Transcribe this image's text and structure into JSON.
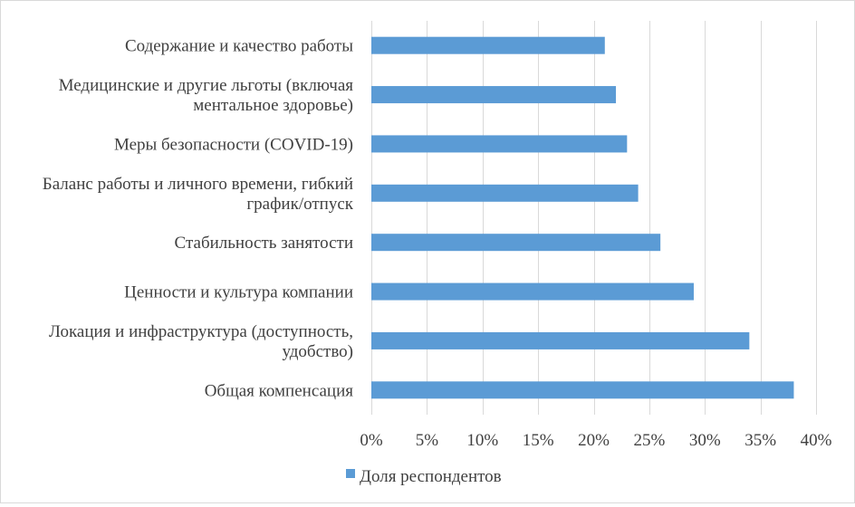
{
  "chart_data": {
    "type": "bar",
    "orientation": "horizontal",
    "categories": [
      [
        "Содержание и качество работы"
      ],
      [
        "Медицинские и другие льготы (включая",
        "ментальное здоровье)"
      ],
      [
        "Меры безопасности (COVID-19)"
      ],
      [
        "Баланс работы и личного времени, гибкий",
        "график/отпуск"
      ],
      [
        "Стабильность занятости"
      ],
      [
        "Ценности и культура  компании"
      ],
      [
        "Локация и инфраструктура  (доступность,",
        "удобство)"
      ],
      [
        "Общая компенсация"
      ]
    ],
    "series": [
      {
        "name": "Доля респондентов",
        "values": [
          21,
          22,
          23,
          24,
          26,
          29,
          34,
          38
        ],
        "color": "#5b9bd5"
      }
    ],
    "xlim": [
      0,
      40
    ],
    "xticks": [
      0,
      5,
      10,
      15,
      20,
      25,
      30,
      35,
      40
    ],
    "xtick_labels": [
      "0%",
      "5%",
      "10%",
      "15%",
      "20%",
      "25%",
      "30%",
      "35%",
      "40%"
    ],
    "value_unit": "%",
    "gridlines": "vertical",
    "gridline_color": "#d9d9d9",
    "legend_position": "bottom"
  }
}
